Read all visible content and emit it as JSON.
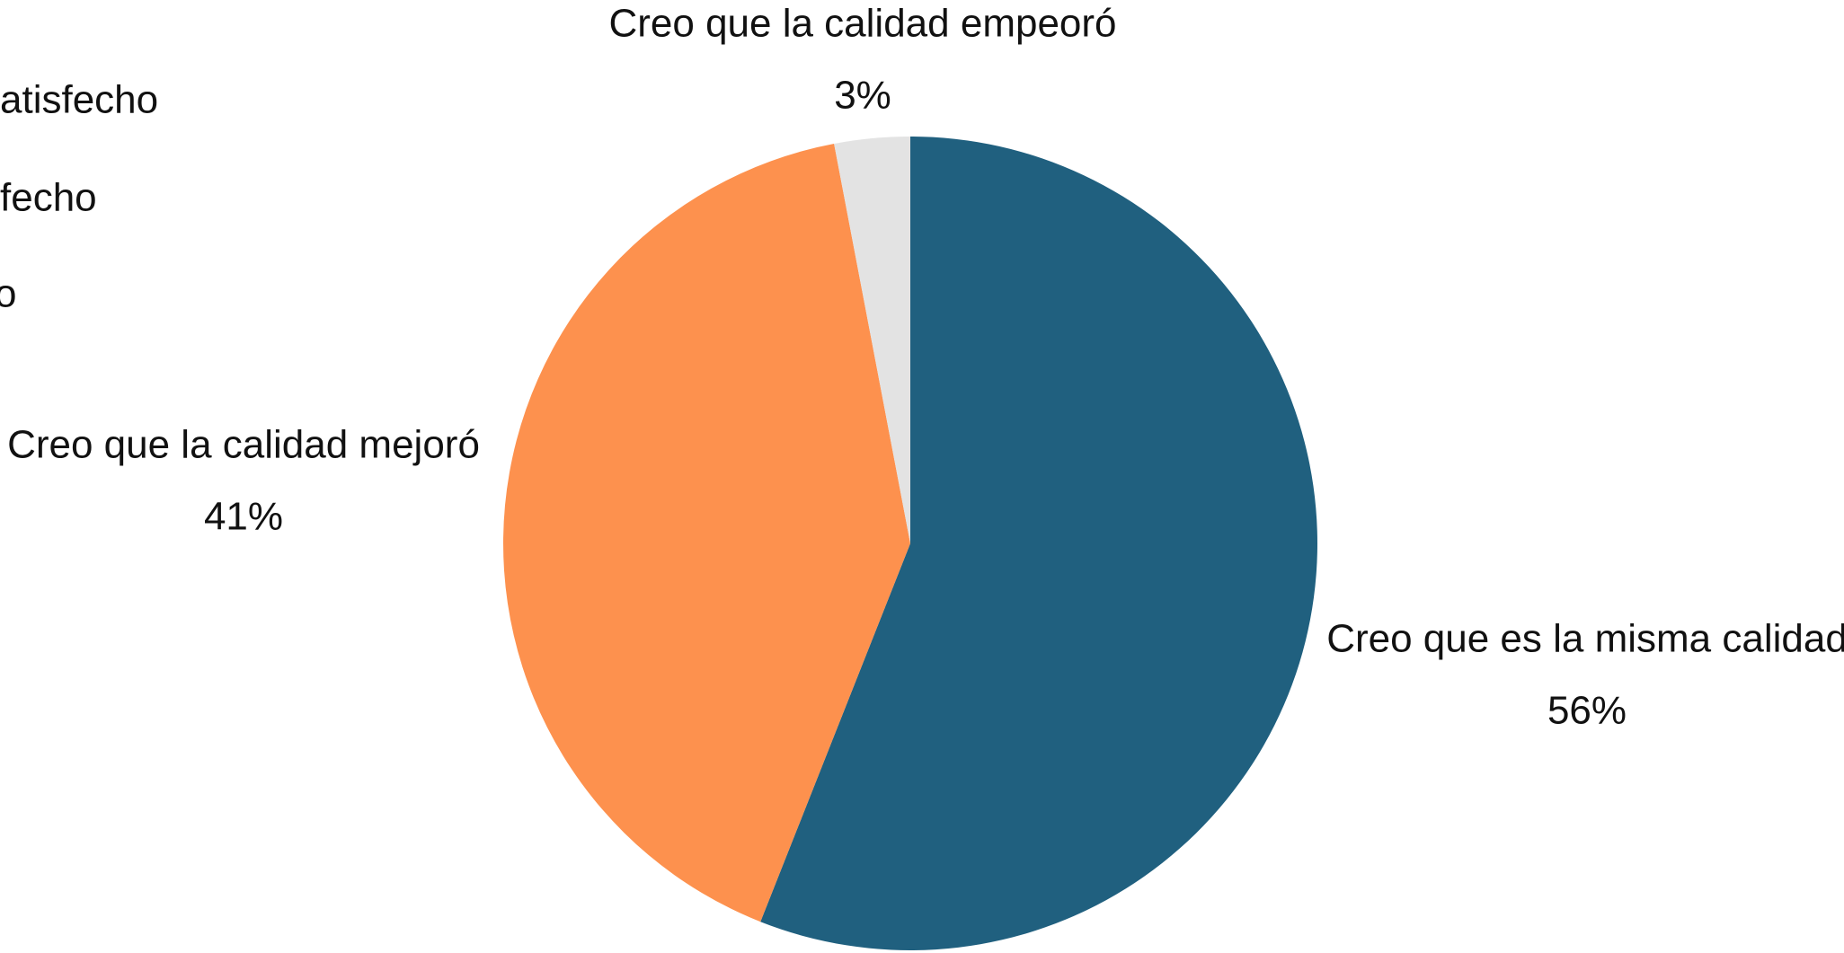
{
  "chart_data": {
    "type": "pie",
    "categories": [
      "Creo que es la misma calidad",
      "Creo que la calidad mejoró",
      "Creo que la calidad empeoró"
    ],
    "values": [
      56,
      41,
      3
    ],
    "value_labels": [
      "56%",
      "41%",
      "3%"
    ],
    "colors": [
      "#20607f",
      "#fd914e",
      "#e3e3e3"
    ]
  },
  "clipped_text": [
    "atisfecho",
    "fecho",
    "o"
  ]
}
